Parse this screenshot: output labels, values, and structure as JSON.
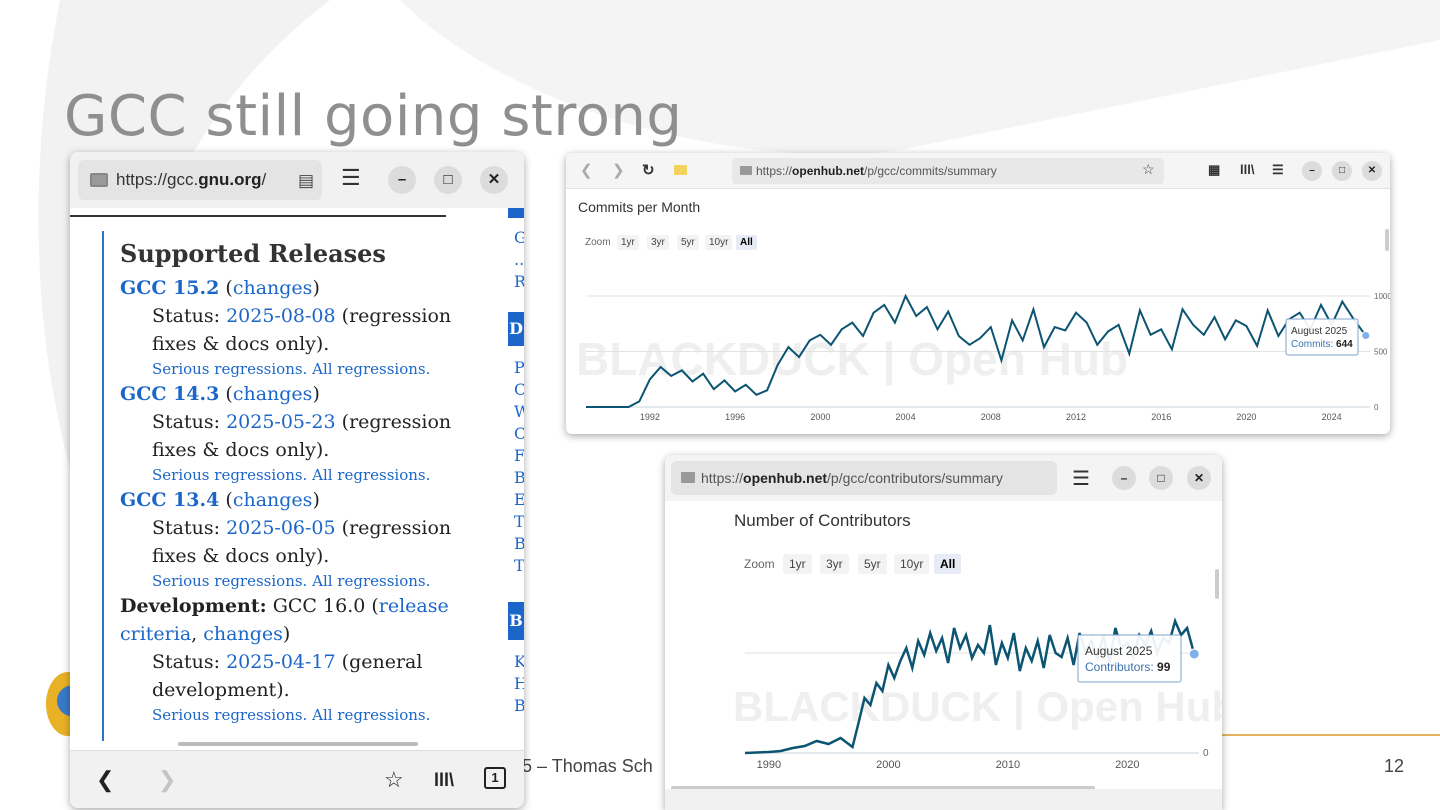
{
  "slide": {
    "title": "GCC still going strong",
    "footer": "5 – Thomas Sch",
    "page_number": "12"
  },
  "gcc_window": {
    "url_prefix": "https://gcc.",
    "url_domain": "gnu.org",
    "url_suffix": "/",
    "section_title": "Supported Releases",
    "releases": [
      {
        "name": "GCC 15.2",
        "changes": "changes",
        "status_label": "Status:",
        "date": "2025-08-08",
        "status_text": "(regression fixes & docs only).",
        "serious": "Serious regressions.",
        "all": "All regressions."
      },
      {
        "name": "GCC 14.3",
        "changes": "changes",
        "status_label": "Status:",
        "date": "2025-05-23",
        "status_text": "(regression fixes & docs only).",
        "serious": "Serious regressions.",
        "all": "All regressions."
      },
      {
        "name": "GCC 13.4",
        "changes": "changes",
        "status_label": "Status:",
        "date": "2025-06-05",
        "status_text": "(regression fixes & docs only).",
        "serious": "Serious regressions.",
        "all": "All regressions."
      }
    ],
    "development": {
      "label": "Development:",
      "version": "GCC 16.0",
      "link1": "release criteria",
      "link2": "changes",
      "status_label": "Status:",
      "date": "2025-04-17",
      "status_text": "(general development).",
      "serious": "Serious regressions.",
      "all": "All regressions."
    },
    "side_letters": [
      "G",
      "..",
      "R",
      "D",
      "P",
      "C",
      "W",
      "C",
      "F",
      "B",
      "E",
      "T",
      "B",
      "T",
      "B",
      "K",
      "H",
      "B"
    ]
  },
  "commits_window": {
    "url_prefix": "https://",
    "url_domain": "openhub.net",
    "url_suffix": "/p/gcc/commits/summary",
    "zoom_label": "Zoom",
    "zoom_options": [
      "1yr",
      "3yr",
      "5yr",
      "10yr",
      "All"
    ],
    "tooltip_date": "August 2025",
    "tooltip_label": "Commits:",
    "tooltip_value": "644",
    "watermark": "BLACKDUCK | Open Hub"
  },
  "contrib_window": {
    "url_prefix": "https://",
    "url_domain": "openhub.net",
    "url_suffix": "/p/gcc/contributors/summary",
    "zoom_label": "Zoom",
    "zoom_options": [
      "1yr",
      "3yr",
      "5yr",
      "10yr",
      "All"
    ],
    "tooltip_date": "August 2025",
    "tooltip_label": "Contributors:",
    "tooltip_value": "99",
    "watermark": "BLACKDUCK | Open Hub"
  },
  "chart_data": [
    {
      "type": "line",
      "title": "Commits per Month",
      "xlabel": "",
      "ylabel": "",
      "x_ticks": [
        "1992",
        "1996",
        "2000",
        "2004",
        "2008",
        "2012",
        "2016",
        "2020",
        "2024"
      ],
      "y_ticks": [
        "0",
        "500",
        "1000"
      ],
      "ylim": [
        0,
        1000
      ],
      "xlim": [
        1989.0,
        2025.8
      ],
      "grid": true,
      "color": "#0b5472",
      "series": [
        {
          "x": [
            1989.0,
            1990.0,
            1991.0,
            1991.5,
            1992.0,
            1992.5,
            1993.0,
            1993.5,
            1994.0,
            1994.5,
            1995.0,
            1995.5,
            1996.0,
            1996.5,
            1997.0,
            1997.5,
            1998.0,
            1998.5,
            1999.0,
            1999.5,
            2000.0,
            2000.5,
            2001.0,
            2001.5,
            2002.0,
            2002.5,
            2003.0,
            2003.5,
            2004.0,
            2004.5,
            2005.0,
            2005.5,
            2006.0,
            2006.5,
            2007.0,
            2007.5,
            2008.0,
            2008.5,
            2009.0,
            2009.5,
            2010.0,
            2010.5,
            2011.0,
            2011.5,
            2012.0,
            2012.5,
            2013.0,
            2013.5,
            2014.0,
            2014.5,
            2015.0,
            2015.5,
            2016.0,
            2016.5,
            2017.0,
            2017.5,
            2018.0,
            2018.5,
            2019.0,
            2019.5,
            2020.0,
            2020.5,
            2021.0,
            2021.5,
            2022.0,
            2022.5,
            2023.0,
            2023.5,
            2024.0,
            2024.5,
            2025.0,
            2025.6
          ],
          "y": [
            0,
            0,
            0,
            50,
            250,
            360,
            280,
            330,
            230,
            300,
            160,
            240,
            140,
            200,
            110,
            150,
            380,
            540,
            450,
            600,
            650,
            560,
            700,
            760,
            640,
            850,
            920,
            760,
            1000,
            820,
            900,
            700,
            860,
            640,
            560,
            620,
            720,
            420,
            780,
            600,
            880,
            540,
            720,
            690,
            850,
            760,
            560,
            680,
            740,
            480,
            870,
            650,
            700,
            520,
            880,
            740,
            650,
            810,
            610,
            780,
            730,
            550,
            870,
            640,
            790,
            850,
            700,
            920,
            740,
            950,
            800,
            644
          ]
        }
      ]
    },
    {
      "type": "line",
      "title": "Number of Contributors",
      "xlabel": "",
      "ylabel": "",
      "x_ticks": [
        "1990",
        "2000",
        "2010",
        "2020"
      ],
      "y_ticks": [
        "0"
      ],
      "ylim": [
        0,
        140
      ],
      "xlim": [
        1988.0,
        2026.0
      ],
      "grid": true,
      "color": "#0b5472",
      "series": [
        {
          "x": [
            1988.0,
            1990.0,
            1991.0,
            1992.0,
            1993.0,
            1994.0,
            1995.0,
            1996.0,
            1997.0,
            1997.5,
            1998.0,
            1998.5,
            1999.0,
            1999.5,
            2000.0,
            2000.5,
            2001.0,
            2001.5,
            2002.0,
            2002.5,
            2003.0,
            2003.5,
            2004.0,
            2004.5,
            2005.0,
            2005.5,
            2006.0,
            2006.5,
            2007.0,
            2007.5,
            2008.0,
            2008.5,
            2009.0,
            2009.5,
            2010.0,
            2010.5,
            2011.0,
            2011.5,
            2012.0,
            2012.5,
            2013.0,
            2013.5,
            2014.0,
            2014.5,
            2015.0,
            2015.5,
            2016.0,
            2016.5,
            2017.0,
            2017.5,
            2018.0,
            2018.5,
            2019.0,
            2019.5,
            2020.0,
            2020.5,
            2021.0,
            2021.5,
            2022.0,
            2022.5,
            2023.0,
            2023.5,
            2024.0,
            2024.5,
            2025.0,
            2025.6
          ],
          "y": [
            0,
            1,
            2,
            5,
            7,
            12,
            9,
            15,
            6,
            30,
            55,
            48,
            70,
            62,
            88,
            75,
            92,
            105,
            85,
            112,
            98,
            120,
            102,
            115,
            90,
            125,
            105,
            118,
            95,
            108,
            100,
            128,
            88,
            110,
            95,
            120,
            82,
            105,
            92,
            112,
            85,
            118,
            100,
            96,
            115,
            88,
            120,
            102,
            112,
            95,
            118,
            90,
            125,
            105,
            110,
            96,
            118,
            108,
            122,
            100,
            115,
            110,
            132,
            118,
            125,
            99
          ]
        }
      ]
    }
  ]
}
